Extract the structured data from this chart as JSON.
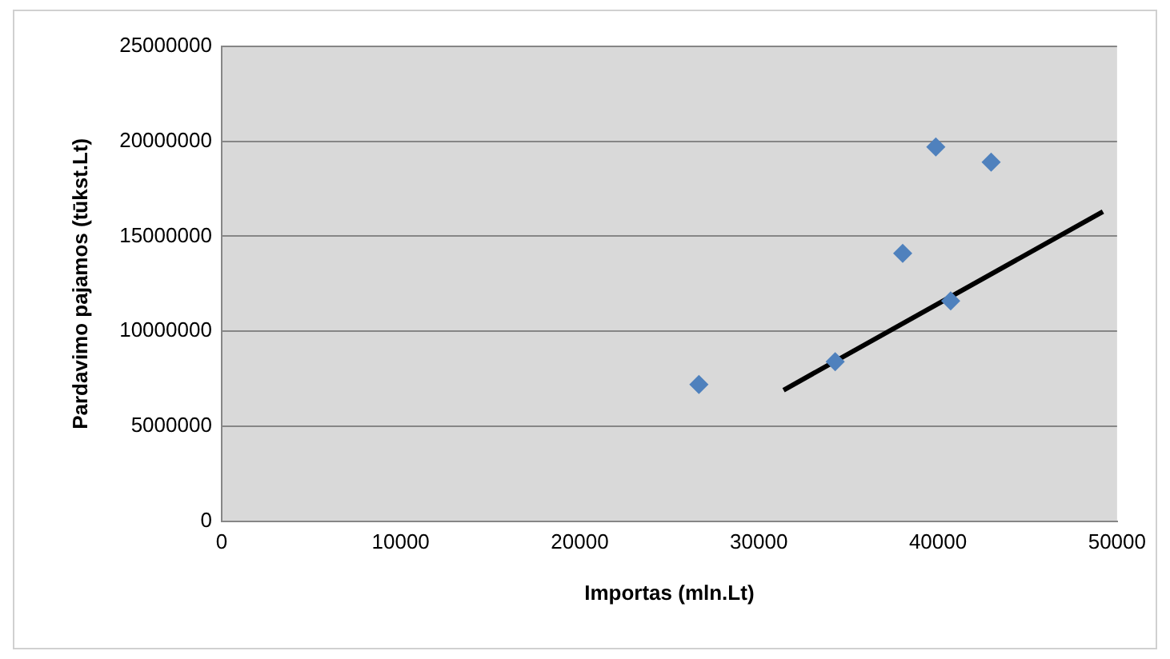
{
  "chart_data": {
    "type": "scatter",
    "xlabel": "Importas (mln.Lt)",
    "ylabel": "Pardavimo pajamos (tūkst.Lt)",
    "xlim": [
      0,
      50000
    ],
    "xticks": [
      0,
      10000,
      20000,
      30000,
      40000,
      50000
    ],
    "ylim": [
      0,
      25000000
    ],
    "yticks": [
      0,
      5000000,
      10000000,
      15000000,
      20000000,
      25000000
    ],
    "grid": "y",
    "legend": false,
    "series": [
      {
        "color": "#4f81bd",
        "marker": "diamond",
        "x": [
          26650,
          34260,
          38030,
          39880,
          40710,
          42970
        ],
        "values": [
          7200000,
          8400000,
          14100000,
          19700000,
          11600000,
          18900000
        ]
      },
      {
        "type": "line",
        "marker": "none",
        "color": "#000000",
        "x": [
          31380,
          49210
        ],
        "values": [
          6900000,
          16300000
        ]
      }
    ]
  }
}
